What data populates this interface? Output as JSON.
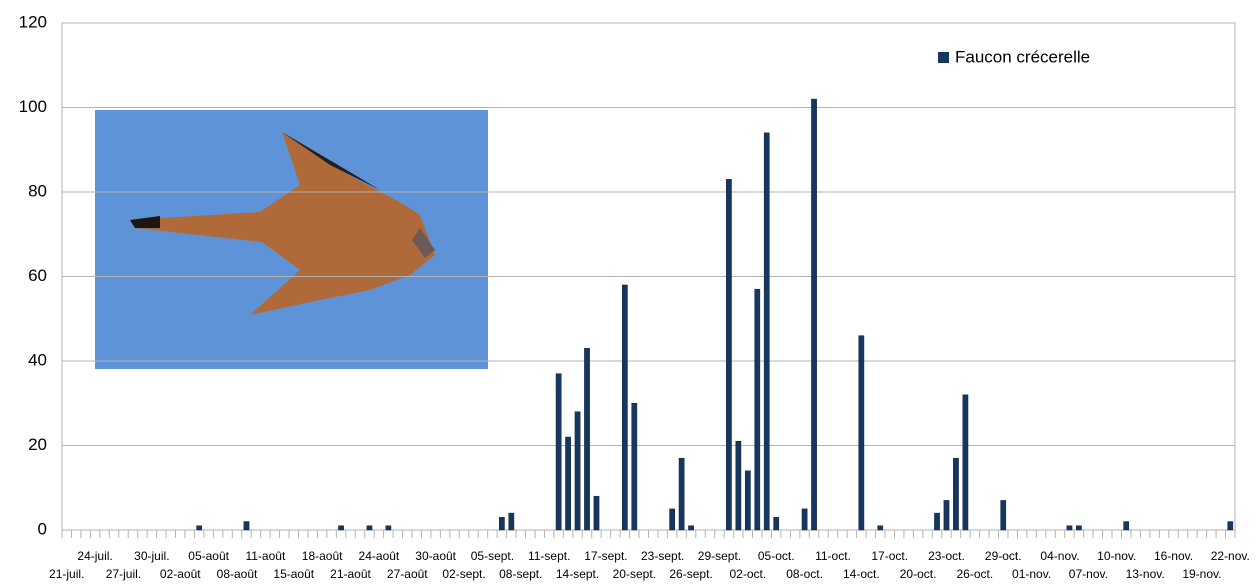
{
  "chart_data": {
    "type": "bar",
    "categories": [
      "21-juil.",
      null,
      null,
      "24-juil.",
      null,
      null,
      "27-juil.",
      null,
      null,
      "30-juil.",
      null,
      null,
      "02-août",
      null,
      null,
      "05-août",
      null,
      null,
      "08-août",
      null,
      null,
      "11-août",
      null,
      null,
      "15-août",
      null,
      null,
      "18-août",
      null,
      null,
      "21-août",
      null,
      null,
      "24-août",
      null,
      null,
      "27-août",
      null,
      null,
      "30-août",
      null,
      null,
      "02-sept.",
      null,
      null,
      "05-sept.",
      null,
      null,
      "08-sept.",
      null,
      null,
      "11-sept.",
      null,
      null,
      "14-sept.",
      null,
      null,
      "17-sept.",
      null,
      null,
      "20-sept.",
      null,
      null,
      "23-sept.",
      null,
      null,
      "26-sept.",
      null,
      null,
      "29-sept.",
      null,
      null,
      "02-oct.",
      null,
      null,
      "05-oct.",
      null,
      null,
      "08-oct.",
      null,
      null,
      "11-oct.",
      null,
      null,
      "14-oct.",
      null,
      null,
      "17-oct.",
      null,
      null,
      "20-oct.",
      null,
      null,
      "23-oct.",
      null,
      null,
      "26-oct.",
      null,
      null,
      "29-oct.",
      null,
      null,
      "01-nov.",
      null,
      null,
      "04-nov.",
      null,
      null,
      "07-nov.",
      null,
      null,
      "10-nov.",
      null,
      null,
      "13-nov.",
      null,
      null,
      "16-nov.",
      null,
      null,
      "19-nov.",
      null,
      null,
      "22-nov."
    ],
    "series": [
      {
        "name": "Faucon crécerelle",
        "color": "#17375e",
        "values": [
          null,
          null,
          null,
          null,
          null,
          null,
          null,
          null,
          null,
          null,
          null,
          null,
          null,
          null,
          1,
          null,
          null,
          null,
          null,
          2,
          null,
          null,
          null,
          null,
          null,
          null,
          null,
          null,
          null,
          1,
          null,
          null,
          1,
          null,
          1,
          null,
          null,
          null,
          null,
          null,
          null,
          null,
          null,
          null,
          null,
          null,
          3,
          4,
          null,
          null,
          null,
          null,
          37,
          22,
          28,
          43,
          8,
          null,
          null,
          58,
          30,
          null,
          null,
          null,
          5,
          17,
          1,
          null,
          null,
          null,
          83,
          21,
          14,
          57,
          94,
          3,
          null,
          null,
          5,
          102,
          null,
          null,
          null,
          null,
          46,
          null,
          1,
          null,
          null,
          null,
          null,
          null,
          4,
          7,
          17,
          32,
          null,
          null,
          null,
          7,
          null,
          null,
          null,
          null,
          null,
          null,
          1,
          1,
          null,
          null,
          null,
          null,
          2,
          null,
          null,
          null,
          null,
          null,
          null,
          null,
          null,
          null,
          null,
          2
        ]
      }
    ],
    "ylim": [
      0,
      120
    ],
    "yticks": [
      0,
      20,
      40,
      60,
      80,
      100,
      120
    ],
    "grid": true,
    "legend": "top-right"
  }
}
